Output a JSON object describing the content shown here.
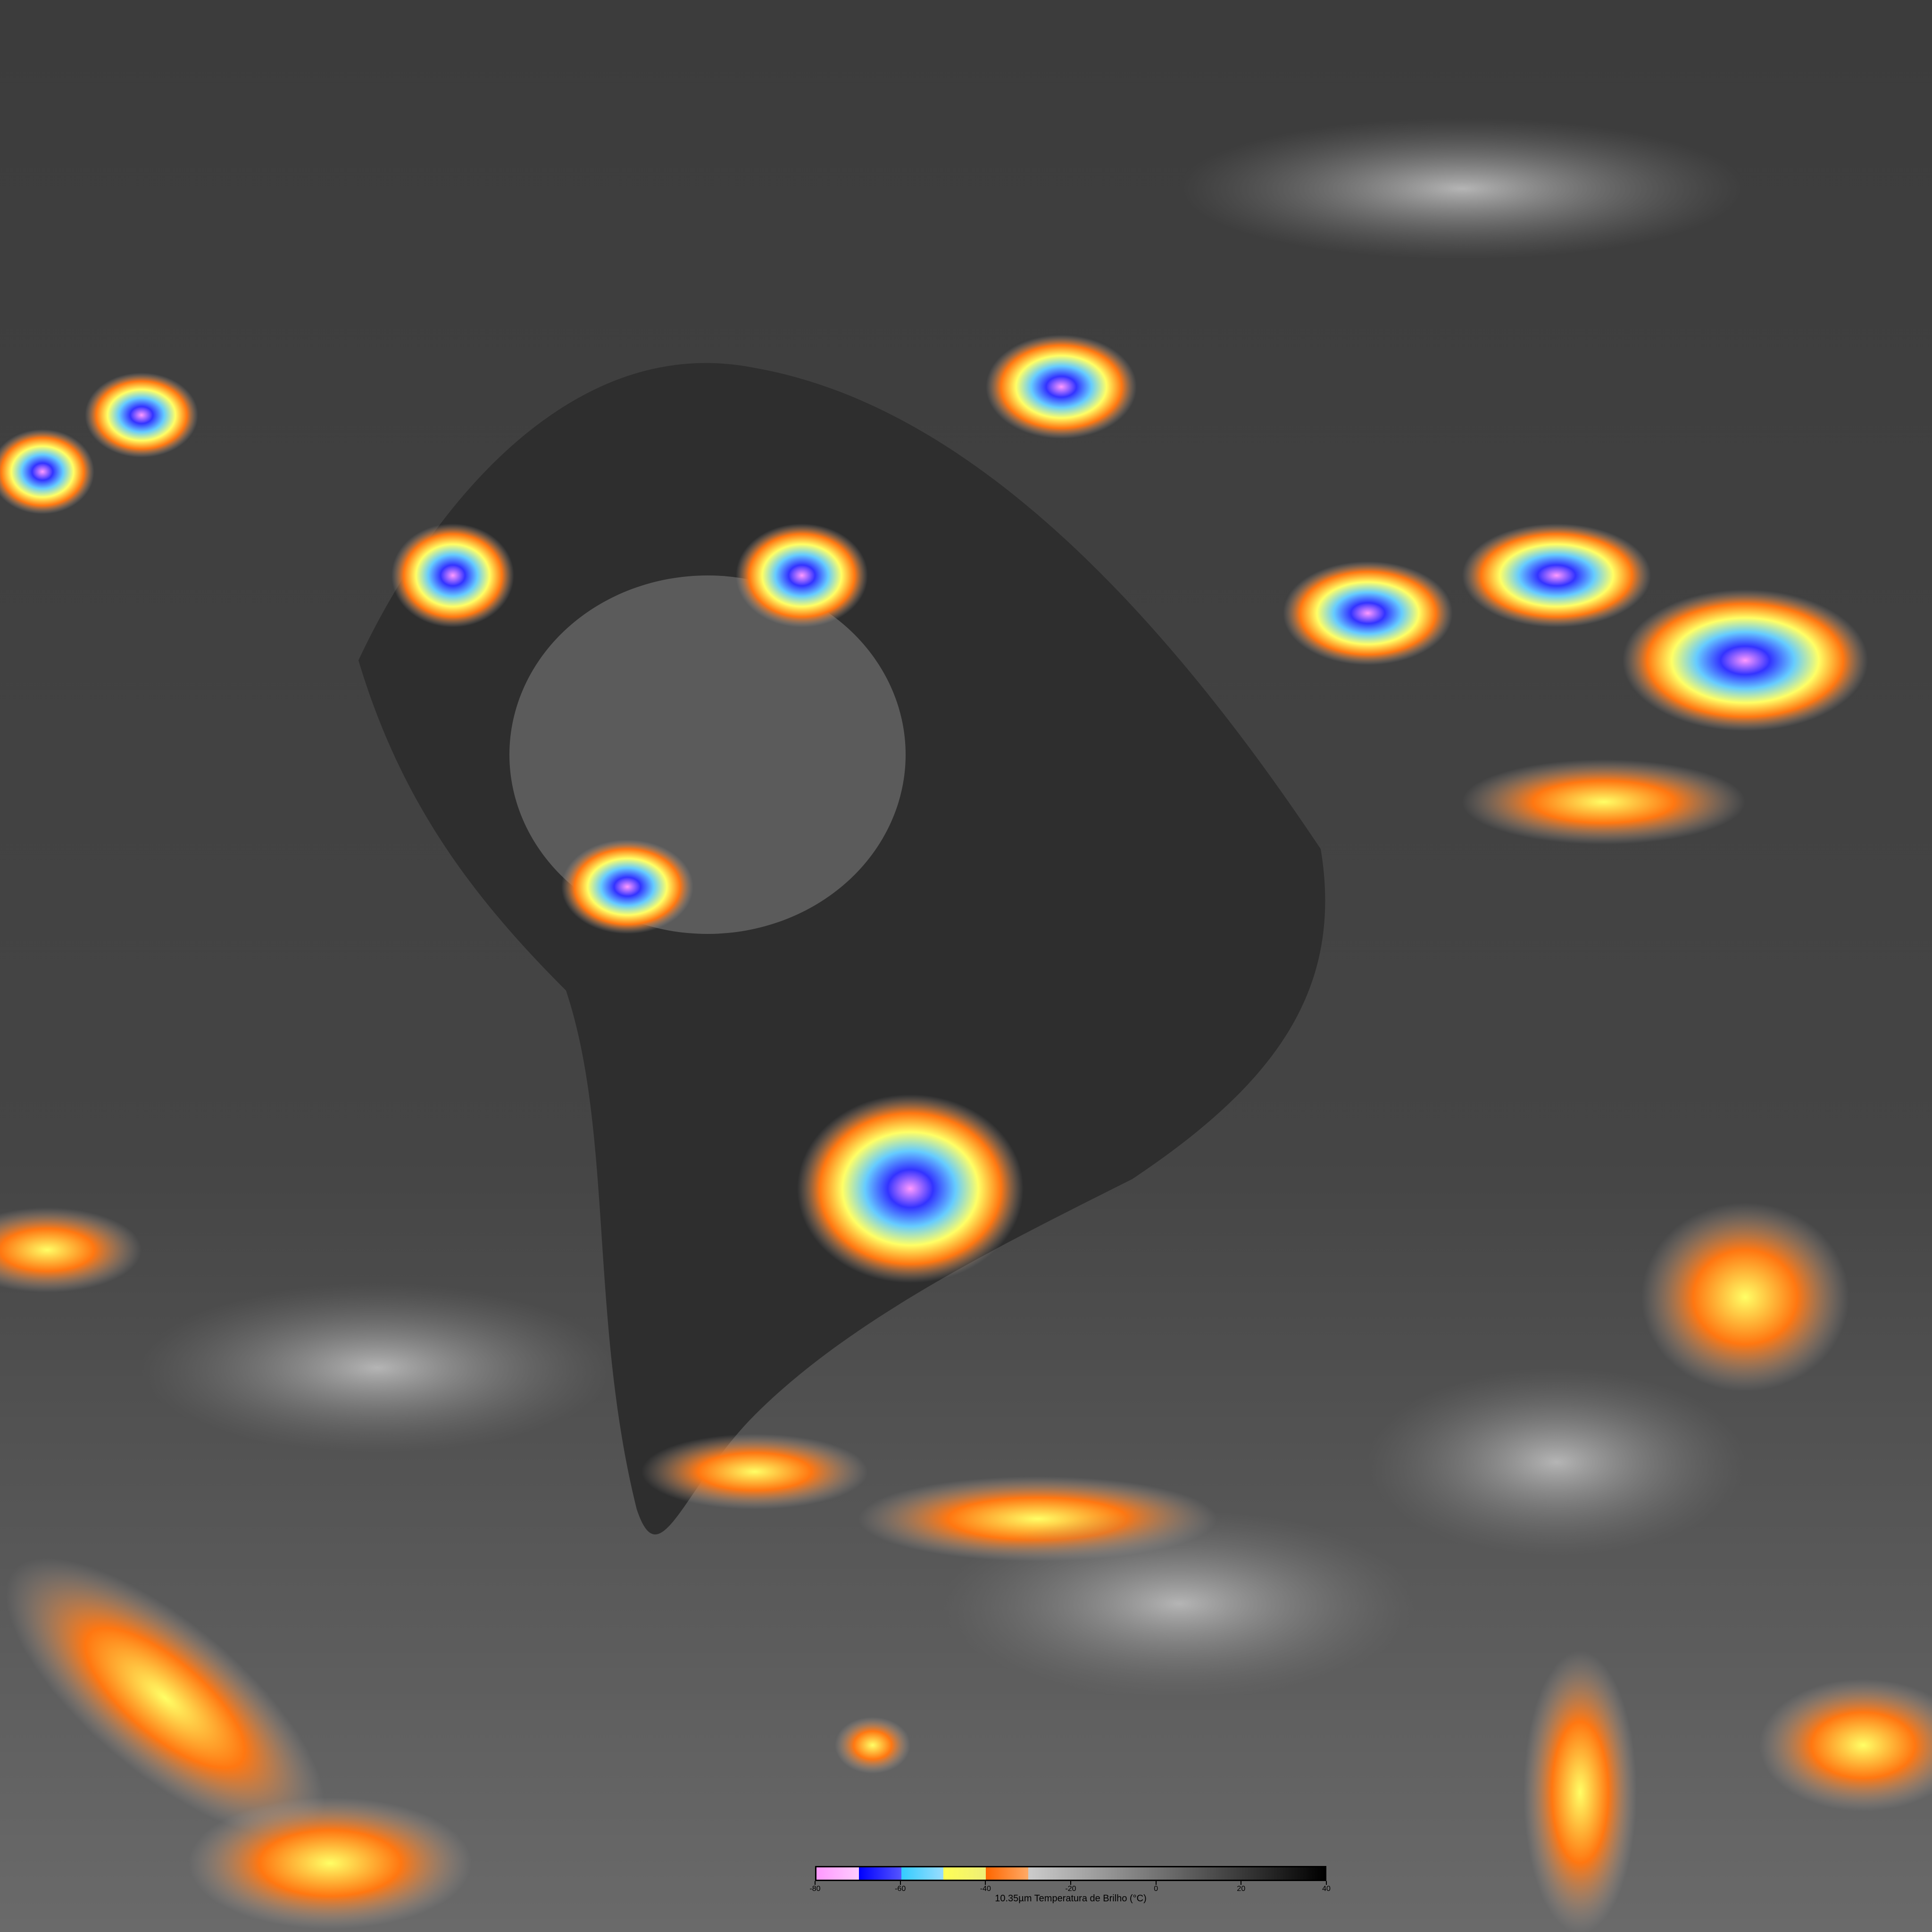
{
  "image": {
    "type": "infrared satellite image",
    "region": "South America and surrounding oceans"
  },
  "colorbar": {
    "title": "10.35µm Temperatura de Brilho (°C)",
    "min": -80,
    "max": 40,
    "ticks": [
      "-80",
      "-60",
      "-40",
      "-20",
      "0",
      "20",
      "40"
    ],
    "tick_values": [
      -80,
      -60,
      -40,
      -20,
      0,
      20,
      40
    ],
    "segments": [
      {
        "from": -80,
        "to": -70,
        "start": "#ff99ff",
        "end": "#ffccff"
      },
      {
        "from": -70,
        "to": -60,
        "start": "#0000ff",
        "end": "#5555ff"
      },
      {
        "from": -60,
        "to": -50,
        "start": "#33ccff",
        "end": "#99ddff"
      },
      {
        "from": -50,
        "to": -40,
        "start": "#ffff55",
        "end": "#eeee77"
      },
      {
        "from": -40,
        "to": -30,
        "start": "#ff6600",
        "end": "#ffaa66"
      },
      {
        "from": -30,
        "to": 40,
        "start": "#cccccc",
        "end": "#000000"
      }
    ]
  }
}
